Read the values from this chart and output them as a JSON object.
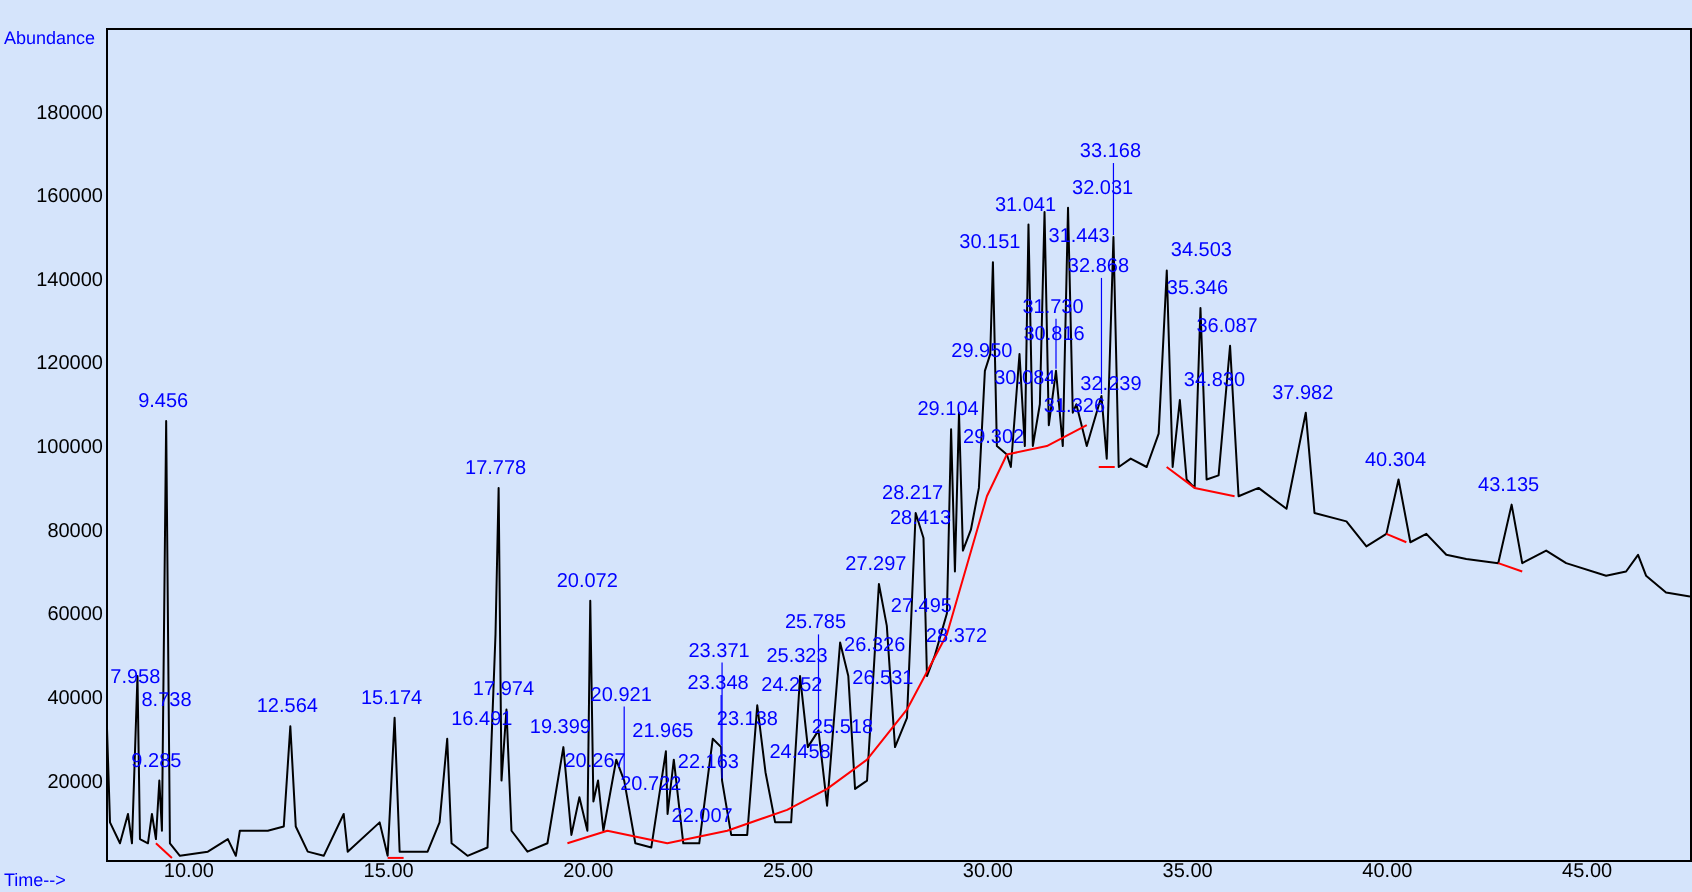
{
  "chart_data": {
    "type": "line",
    "xlabel": "Time-->",
    "ylabel": "Abundance",
    "xlim": [
      7.95,
      47.6
    ],
    "ylim": [
      1000,
      200000
    ],
    "xticks": [
      {
        "value": 10,
        "label": "10.00"
      },
      {
        "value": 15,
        "label": "15.00"
      },
      {
        "value": 20,
        "label": "20.00"
      },
      {
        "value": 25,
        "label": "25.00"
      },
      {
        "value": 30,
        "label": "30.00"
      },
      {
        "value": 35,
        "label": "35.00"
      },
      {
        "value": 40,
        "label": "40.00"
      },
      {
        "value": 45,
        "label": "45.00"
      }
    ],
    "yticks": [
      20000,
      40000,
      60000,
      80000,
      100000,
      120000,
      140000,
      160000,
      180000
    ],
    "grid": false,
    "marker": "none",
    "line_style": "solid",
    "series": [
      {
        "color": "#000000",
        "x": [
          7.95,
          8.05,
          8.3,
          8.5,
          8.6,
          8.738,
          8.8,
          9.0,
          9.1,
          9.2,
          9.285,
          9.35,
          9.456,
          9.55,
          9.8,
          10.5,
          11.0,
          11.2,
          11.3,
          12.0,
          12.4,
          12.564,
          12.7,
          13.0,
          13.4,
          13.9,
          14.0,
          14.8,
          15.0,
          15.174,
          15.3,
          16.0,
          16.3,
          16.491,
          16.6,
          17.0,
          17.5,
          17.7,
          17.778,
          17.85,
          17.974,
          18.1,
          18.5,
          19.0,
          19.399,
          19.6,
          19.8,
          20.0,
          20.072,
          20.15,
          20.267,
          20.4,
          20.722,
          20.921,
          21.2,
          21.6,
          21.965,
          22.007,
          22.163,
          22.4,
          22.8,
          23.138,
          23.348,
          23.371,
          23.6,
          24.0,
          24.252,
          24.458,
          24.7,
          25.1,
          25.323,
          25.518,
          25.785,
          26.0,
          26.326,
          26.531,
          26.7,
          27.0,
          27.297,
          27.495,
          27.7,
          28.0,
          28.217,
          28.413,
          28.5,
          28.7,
          29.0,
          29.104,
          29.2,
          29.302,
          29.4,
          29.6,
          29.8,
          29.95,
          30.084,
          30.151,
          30.25,
          30.5,
          30.6,
          30.816,
          30.95,
          31.041,
          31.15,
          31.326,
          31.443,
          31.55,
          31.73,
          31.9,
          32.031,
          32.15,
          32.239,
          32.5,
          32.868,
          33.0,
          33.168,
          33.3,
          33.6,
          34.0,
          34.3,
          34.503,
          34.65,
          34.83,
          35.0,
          35.2,
          35.346,
          35.5,
          35.8,
          36.087,
          36.3,
          36.8,
          37.5,
          37.982,
          38.2,
          39.0,
          39.5,
          40.0,
          40.304,
          40.6,
          41.0,
          41.5,
          42.0,
          42.8,
          43.135,
          43.4,
          44.0,
          44.5,
          45.5,
          46.0,
          46.3,
          46.5,
          47.0,
          47.6
        ],
        "values": [
          40000,
          10000,
          5000,
          12000,
          5000,
          45000,
          6000,
          5000,
          12000,
          6000,
          20000,
          8000,
          106000,
          5000,
          2000,
          3000,
          6000,
          2000,
          8000,
          8000,
          9000,
          33000,
          9000,
          3000,
          2000,
          12000,
          3000,
          10000,
          2000,
          35000,
          3000,
          3000,
          10000,
          30000,
          5000,
          2000,
          4000,
          55000,
          90000,
          20000,
          37000,
          8000,
          3000,
          5000,
          28000,
          7000,
          16000,
          8000,
          63000,
          15000,
          20000,
          8000,
          25000,
          20000,
          5000,
          4000,
          27000,
          12000,
          25000,
          5000,
          5000,
          30000,
          28000,
          20000,
          7000,
          7000,
          38000,
          22000,
          10000,
          10000,
          45000,
          28000,
          32000,
          14000,
          53000,
          45000,
          18000,
          20000,
          67000,
          57000,
          28000,
          35000,
          84000,
          78000,
          45000,
          50000,
          60000,
          104000,
          70000,
          108000,
          75000,
          80000,
          90000,
          118000,
          122000,
          144000,
          100000,
          98000,
          95000,
          122000,
          100000,
          153000,
          100000,
          110000,
          156000,
          105000,
          118000,
          100000,
          157000,
          108000,
          110000,
          100000,
          112000,
          97000,
          150000,
          95000,
          97000,
          95000,
          103000,
          142000,
          95000,
          111000,
          92000,
          90000,
          133000,
          92000,
          93000,
          124000,
          88000,
          90000,
          85000,
          108000,
          84000,
          82000,
          76000,
          79000,
          92000,
          77000,
          79000,
          74000,
          73000,
          72000,
          86000,
          72000,
          75000,
          72000,
          69000,
          70000,
          74000,
          69000,
          65000,
          64000
        ]
      },
      {
        "color": "#ff0000",
        "x": [
          9.2,
          9.6,
          9.7,
          15.0,
          15.4,
          15.5,
          19.5,
          20.5,
          22.0,
          23.5,
          25.0,
          26.0,
          27.0,
          28.0,
          29.0,
          30.0,
          30.5,
          31.5,
          32.5,
          32.6,
          32.8,
          33.2,
          33.3,
          34.5,
          35.2,
          36.2,
          36.3,
          40.0,
          40.5,
          40.6,
          42.8,
          43.4
        ],
        "values": [
          5000,
          1500,
          null,
          1500,
          1500,
          null,
          5000,
          8000,
          5000,
          8000,
          13000,
          18000,
          25000,
          37000,
          55000,
          88000,
          98000,
          100000,
          105000,
          null,
          95000,
          95000,
          null,
          95000,
          90000,
          88000,
          null,
          79000,
          77000,
          null,
          72000,
          70000
        ]
      }
    ],
    "annotations": [
      {
        "text": "7.958",
        "x": 7.958,
        "y": 40000
      },
      {
        "text": "8.738",
        "x": 8.738,
        "y": 45000
      },
      {
        "text": "9.285",
        "x": 9.285,
        "y": 20000
      },
      {
        "text": "9.456",
        "x": 9.456,
        "y": 106000
      },
      {
        "text": "12.564",
        "x": 12.564,
        "y": 33000
      },
      {
        "text": "15.174",
        "x": 15.174,
        "y": 35000
      },
      {
        "text": "16.491",
        "x": 16.491,
        "y": 30000
      },
      {
        "text": "17.778",
        "x": 17.778,
        "y": 90000
      },
      {
        "text": "17.974",
        "x": 17.974,
        "y": 37000
      },
      {
        "text": "19.399",
        "x": 19.399,
        "y": 28000
      },
      {
        "text": "20.072",
        "x": 20.072,
        "y": 63000
      },
      {
        "text": "20.267",
        "x": 20.267,
        "y": 20000
      },
      {
        "text": "20.722",
        "x": 20.722,
        "y": 25000
      },
      {
        "text": "20.921",
        "x": 20.921,
        "y": 20000
      },
      {
        "text": "21.965",
        "x": 21.965,
        "y": 27000
      },
      {
        "text": "22.007",
        "x": 22.007,
        "y": 12000
      },
      {
        "text": "22.163",
        "x": 22.163,
        "y": 25000
      },
      {
        "text": "23.138",
        "x": 23.138,
        "y": 30000
      },
      {
        "text": "23.348",
        "x": 23.348,
        "y": 28000
      },
      {
        "text": "23.371",
        "x": 23.371,
        "y": 20000
      },
      {
        "text": "24.252",
        "x": 24.252,
        "y": 38000
      },
      {
        "text": "24.458",
        "x": 24.458,
        "y": 22000
      },
      {
        "text": "25.323",
        "x": 25.323,
        "y": 45000
      },
      {
        "text": "25.518",
        "x": 25.518,
        "y": 28000
      },
      {
        "text": "25.785",
        "x": 25.785,
        "y": 32000
      },
      {
        "text": "26.326",
        "x": 26.326,
        "y": 53000
      },
      {
        "text": "26.531",
        "x": 26.531,
        "y": 45000
      },
      {
        "text": "27.297",
        "x": 27.297,
        "y": 67000
      },
      {
        "text": "27.495",
        "x": 27.495,
        "y": 57000
      },
      {
        "text": "28.372",
        "x": 28.372,
        "y": 55000
      },
      {
        "text": "28.217",
        "x": 28.217,
        "y": 84000
      },
      {
        "text": "28.413",
        "x": 28.413,
        "y": 78000
      },
      {
        "text": "29.104",
        "x": 29.104,
        "y": 104000
      },
      {
        "text": "29.302",
        "x": 29.302,
        "y": 108000
      },
      {
        "text": "29.950",
        "x": 29.95,
        "y": 118000
      },
      {
        "text": "30.084",
        "x": 30.084,
        "y": 122000
      },
      {
        "text": "30.151",
        "x": 30.151,
        "y": 144000
      },
      {
        "text": "30.816",
        "x": 30.816,
        "y": 122000
      },
      {
        "text": "31.041",
        "x": 31.041,
        "y": 153000
      },
      {
        "text": "31.326",
        "x": 31.326,
        "y": 110000
      },
      {
        "text": "31.443",
        "x": 31.443,
        "y": 156000
      },
      {
        "text": "31.730",
        "x": 31.73,
        "y": 118000
      },
      {
        "text": "32.031",
        "x": 32.031,
        "y": 157000
      },
      {
        "text": "32.239",
        "x": 32.239,
        "y": 110000
      },
      {
        "text": "32.868",
        "x": 32.868,
        "y": 112000
      },
      {
        "text": "33.168",
        "x": 33.168,
        "y": 150000
      },
      {
        "text": "34.503",
        "x": 34.503,
        "y": 142000
      },
      {
        "text": "34.830",
        "x": 34.83,
        "y": 111000
      },
      {
        "text": "35.346",
        "x": 35.346,
        "y": 133000
      },
      {
        "text": "36.087",
        "x": 36.087,
        "y": 124000
      },
      {
        "text": "37.982",
        "x": 37.982,
        "y": 108000
      },
      {
        "text": "40.304",
        "x": 40.304,
        "y": 92000
      },
      {
        "text": "43.135",
        "x": 43.135,
        "y": 86000
      }
    ]
  }
}
